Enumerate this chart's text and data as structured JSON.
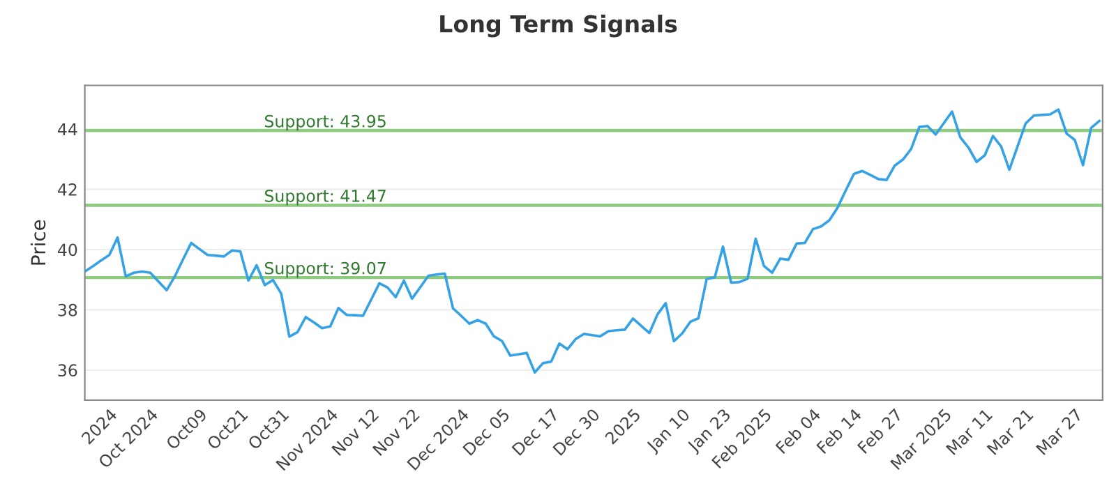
{
  "chart_data": {
    "type": "line",
    "title": "Long Term Signals",
    "ylabel": "Price",
    "categories": [
      null,
      null,
      null,
      "2024",
      null,
      null,
      null,
      null,
      "Oct 2024",
      null,
      null,
      null,
      null,
      null,
      "Oct09",
      null,
      null,
      null,
      null,
      "Oct21",
      null,
      null,
      null,
      null,
      "Oct31",
      null,
      null,
      null,
      null,
      null,
      "Nov 2024",
      null,
      null,
      null,
      null,
      "Nov 12",
      null,
      null,
      null,
      null,
      "Nov 22",
      null,
      null,
      null,
      null,
      null,
      "Dec 2024",
      null,
      null,
      null,
      null,
      "Dec 05",
      null,
      null,
      null,
      null,
      null,
      "Dec 17",
      null,
      null,
      null,
      null,
      "Dec 30",
      null,
      null,
      null,
      null,
      "2025",
      null,
      null,
      null,
      null,
      null,
      "Jan 10",
      null,
      null,
      null,
      null,
      "Jan 23",
      null,
      null,
      null,
      null,
      "Feb 2025",
      null,
      null,
      null,
      null,
      null,
      "Feb 04",
      null,
      null,
      null,
      null,
      "Feb 14",
      null,
      null,
      null,
      null,
      "Feb 27",
      null,
      null,
      null,
      null,
      null,
      "Mar 2025",
      null,
      null,
      null,
      null,
      "Mar 11",
      null,
      null,
      null,
      null,
      "Mar 21",
      null,
      null,
      null,
      null,
      null,
      "Mar 27",
      null,
      null,
      null
    ],
    "series": [
      {
        "color": "#35a2e6",
        "values": [
          39.27,
          39.45,
          39.64,
          39.82,
          40.4,
          39.11,
          39.23,
          39.27,
          39.23,
          38.94,
          38.65,
          39.11,
          39.67,
          40.22,
          40.02,
          39.82,
          39.8,
          39.77,
          39.97,
          39.94,
          38.97,
          39.48,
          38.82,
          38.99,
          38.54,
          37.11,
          37.26,
          37.76,
          37.58,
          37.39,
          37.45,
          38.06,
          37.83,
          37.82,
          37.8,
          38.34,
          38.88,
          38.74,
          38.42,
          38.97,
          38.37,
          38.75,
          39.13,
          39.17,
          39.2,
          38.05,
          37.8,
          37.54,
          37.66,
          37.54,
          37.12,
          36.96,
          36.48,
          36.52,
          36.57,
          35.92,
          36.23,
          36.28,
          36.88,
          36.69,
          37.03,
          37.2,
          37.16,
          37.12,
          37.29,
          37.32,
          37.34,
          37.71,
          37.47,
          37.23,
          37.85,
          38.22,
          36.96,
          37.21,
          37.6,
          37.72,
          39.02,
          39.08,
          40.1,
          38.9,
          38.92,
          39.03,
          40.36,
          39.46,
          39.23,
          39.7,
          39.66,
          40.2,
          40.22,
          40.68,
          40.77,
          40.97,
          41.39,
          41.96,
          42.51,
          42.61,
          42.48,
          42.34,
          42.31,
          42.79,
          42.99,
          43.34,
          44.07,
          44.1,
          43.82,
          44.2,
          44.58,
          43.73,
          43.39,
          42.91,
          43.13,
          43.77,
          43.42,
          42.65,
          43.42,
          44.19,
          44.45,
          44.47,
          44.49,
          44.65,
          43.85,
          43.64,
          42.8,
          44.04,
          44.27
        ]
      }
    ],
    "ylim": [
      35.0,
      45.45
    ],
    "yticks": [
      36,
      38,
      40,
      42,
      44
    ],
    "grid": "y",
    "marker": "none",
    "line_style": "solid",
    "ref_lines": [
      {
        "axis": "y",
        "value": 43.95,
        "label": "Support: 43.95",
        "color": "#8dcb7f"
      },
      {
        "axis": "y",
        "value": 41.47,
        "label": "Support: 41.47",
        "color": "#8dcb7f"
      },
      {
        "axis": "y",
        "value": 39.07,
        "label": "Support: 39.07",
        "color": "#8dcb7f"
      }
    ]
  }
}
